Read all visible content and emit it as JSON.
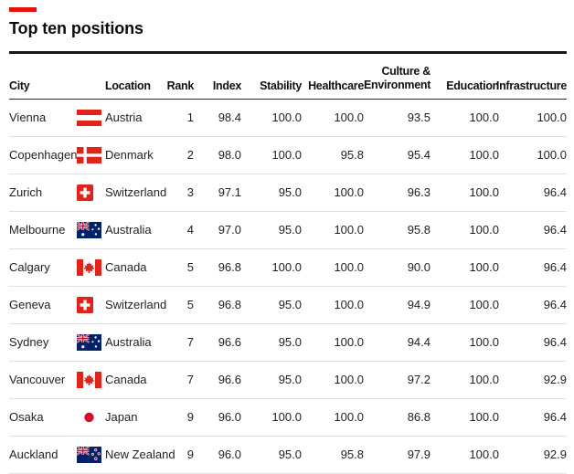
{
  "accent_color": "#E3120B",
  "title": "Top ten positions",
  "headers": {
    "city": "City",
    "location": "Location",
    "rank": "Rank",
    "index": "Index",
    "stability": "Stability",
    "healthcare": "Healthcare",
    "culture_line1": "Culture &",
    "culture_line2": "Environment",
    "education": "Education",
    "infrastructure": "Infrastructure"
  },
  "chart_data": {
    "type": "table",
    "title": "Top ten positions",
    "columns": [
      "City",
      "Location",
      "Rank",
      "Index",
      "Stability",
      "Healthcare",
      "Culture & Environment",
      "Education",
      "Infrastructure"
    ],
    "rows": [
      {
        "city": "Vienna",
        "flag": "austria",
        "country": "Austria",
        "rank": "1",
        "index": "98.4",
        "stability": "100.0",
        "healthcare": "100.0",
        "culture_environment": "93.5",
        "education": "100.0",
        "infrastructure": "100.0"
      },
      {
        "city": "Copenhagen",
        "flag": "denmark",
        "country": "Denmark",
        "rank": "2",
        "index": "98.0",
        "stability": "100.0",
        "healthcare": "95.8",
        "culture_environment": "95.4",
        "education": "100.0",
        "infrastructure": "100.0"
      },
      {
        "city": "Zurich",
        "flag": "switzerland",
        "country": "Switzerland",
        "rank": "3",
        "index": "97.1",
        "stability": "95.0",
        "healthcare": "100.0",
        "culture_environment": "96.3",
        "education": "100.0",
        "infrastructure": "96.4"
      },
      {
        "city": "Melbourne",
        "flag": "australia",
        "country": "Australia",
        "rank": "4",
        "index": "97.0",
        "stability": "95.0",
        "healthcare": "100.0",
        "culture_environment": "95.8",
        "education": "100.0",
        "infrastructure": "96.4"
      },
      {
        "city": "Calgary",
        "flag": "canada",
        "country": "Canada",
        "rank": "5",
        "index": "96.8",
        "stability": "100.0",
        "healthcare": "100.0",
        "culture_environment": "90.0",
        "education": "100.0",
        "infrastructure": "96.4"
      },
      {
        "city": "Geneva",
        "flag": "switzerland",
        "country": "Switzerland",
        "rank": "5",
        "index": "96.8",
        "stability": "95.0",
        "healthcare": "100.0",
        "culture_environment": "94.9",
        "education": "100.0",
        "infrastructure": "96.4"
      },
      {
        "city": "Sydney",
        "flag": "australia",
        "country": "Australia",
        "rank": "7",
        "index": "96.6",
        "stability": "95.0",
        "healthcare": "100.0",
        "culture_environment": "94.4",
        "education": "100.0",
        "infrastructure": "96.4"
      },
      {
        "city": "Vancouver",
        "flag": "canada",
        "country": "Canada",
        "rank": "7",
        "index": "96.6",
        "stability": "95.0",
        "healthcare": "100.0",
        "culture_environment": "97.2",
        "education": "100.0",
        "infrastructure": "92.9"
      },
      {
        "city": "Osaka",
        "flag": "japan",
        "country": "Japan",
        "rank": "9",
        "index": "96.0",
        "stability": "100.0",
        "healthcare": "100.0",
        "culture_environment": "86.8",
        "education": "100.0",
        "infrastructure": "96.4"
      },
      {
        "city": "Auckland",
        "flag": "new-zealand",
        "country": "New Zealand",
        "rank": "9",
        "index": "96.0",
        "stability": "95.0",
        "healthcare": "95.8",
        "culture_environment": "97.9",
        "education": "100.0",
        "infrastructure": "92.9"
      }
    ]
  }
}
